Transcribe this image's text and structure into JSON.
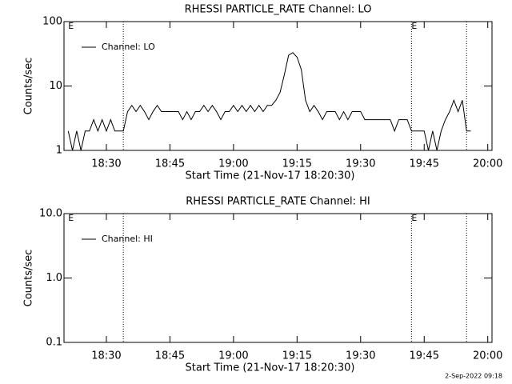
{
  "chart_data": [
    {
      "type": "line",
      "title": "RHESSI PARTICLE_RATE Channel: LO",
      "xlabel": "Start Time (21-Nov-17 18:20:30)",
      "ylabel": "Counts/sec",
      "log_y": true,
      "ylim": [
        1,
        100
      ],
      "yticks": [
        1,
        10,
        100
      ],
      "xlim": [
        "18:20",
        "20:01"
      ],
      "xticks": [
        "18:30",
        "18:45",
        "19:00",
        "19:15",
        "19:30",
        "19:45",
        "20:00"
      ],
      "legend": "upper left",
      "vlines": [
        "18:34",
        "19:42",
        "19:55"
      ],
      "annotations": [
        {
          "text": "E",
          "x": "18:21"
        },
        {
          "text": "E",
          "x": "19:42"
        }
      ],
      "x": [
        "18:21",
        "18:22",
        "18:23",
        "18:24",
        "18:25",
        "18:26",
        "18:27",
        "18:28",
        "18:29",
        "18:30",
        "18:31",
        "18:32",
        "18:33",
        "18:34",
        "18:35",
        "18:36",
        "18:37",
        "18:38",
        "18:39",
        "18:40",
        "18:41",
        "18:42",
        "18:43",
        "18:44",
        "18:45",
        "18:46",
        "18:47",
        "18:48",
        "18:49",
        "18:50",
        "18:51",
        "18:52",
        "18:53",
        "18:54",
        "18:55",
        "18:56",
        "18:57",
        "18:58",
        "18:59",
        "19:00",
        "19:01",
        "19:02",
        "19:03",
        "19:04",
        "19:05",
        "19:06",
        "19:07",
        "19:08",
        "19:09",
        "19:10",
        "19:11",
        "19:12",
        "19:13",
        "19:14",
        "19:15",
        "19:16",
        "19:17",
        "19:18",
        "19:19",
        "19:20",
        "19:21",
        "19:22",
        "19:23",
        "19:24",
        "19:25",
        "19:26",
        "19:27",
        "19:28",
        "19:29",
        "19:30",
        "19:31",
        "19:32",
        "19:33",
        "19:34",
        "19:35",
        "19:36",
        "19:37",
        "19:38",
        "19:39",
        "19:40",
        "19:41",
        "19:42",
        "19:43",
        "19:44",
        "19:45",
        "19:46",
        "19:47",
        "19:48",
        "19:49",
        "19:50",
        "19:51",
        "19:52",
        "19:53",
        "19:54",
        "19:55",
        "19:56"
      ],
      "series": [
        {
          "name": "Channel: LO",
          "color": "#000000",
          "values": [
            2,
            1,
            2,
            1,
            2,
            2,
            3,
            2,
            3,
            2,
            3,
            2,
            2,
            2,
            4,
            5,
            4,
            5,
            4,
            3,
            4,
            5,
            4,
            4,
            4,
            4,
            4,
            3,
            4,
            3,
            4,
            4,
            5,
            4,
            5,
            4,
            3,
            4,
            4,
            5,
            4,
            5,
            4,
            5,
            4,
            5,
            4,
            5,
            5,
            6,
            8,
            15,
            30,
            33,
            28,
            18,
            6,
            4,
            5,
            4,
            3,
            4,
            4,
            4,
            3,
            4,
            3,
            4,
            4,
            4,
            3,
            3,
            3,
            3,
            3,
            3,
            3,
            2,
            3,
            3,
            3,
            2,
            2,
            2,
            2,
            1,
            2,
            1,
            2,
            3,
            4,
            6,
            4,
            6,
            2,
            2
          ]
        }
      ]
    },
    {
      "type": "line",
      "title": "RHESSI PARTICLE_RATE Channel: HI",
      "xlabel": "Start Time (21-Nov-17 18:20:30)",
      "ylabel": "Counts/sec",
      "log_y": true,
      "ylim": [
        0.1,
        10
      ],
      "yticks": [
        0.1,
        {
          "value": 1,
          "label": "1.0"
        },
        {
          "value": 10,
          "label": "10.0"
        }
      ],
      "xlim": [
        "18:20",
        "20:01"
      ],
      "xticks": [
        "18:30",
        "18:45",
        "19:00",
        "19:15",
        "19:30",
        "19:45",
        "20:00"
      ],
      "legend": "upper left",
      "vlines": [
        "18:34",
        "19:42",
        "19:55"
      ],
      "annotations": [
        {
          "text": "E",
          "x": "18:21"
        },
        {
          "text": "E",
          "x": "19:42"
        }
      ],
      "x": [],
      "series": [
        {
          "name": "Channel: HI",
          "color": "#000000",
          "values": []
        }
      ]
    }
  ],
  "footer": "2-Sep-2022 09:18"
}
